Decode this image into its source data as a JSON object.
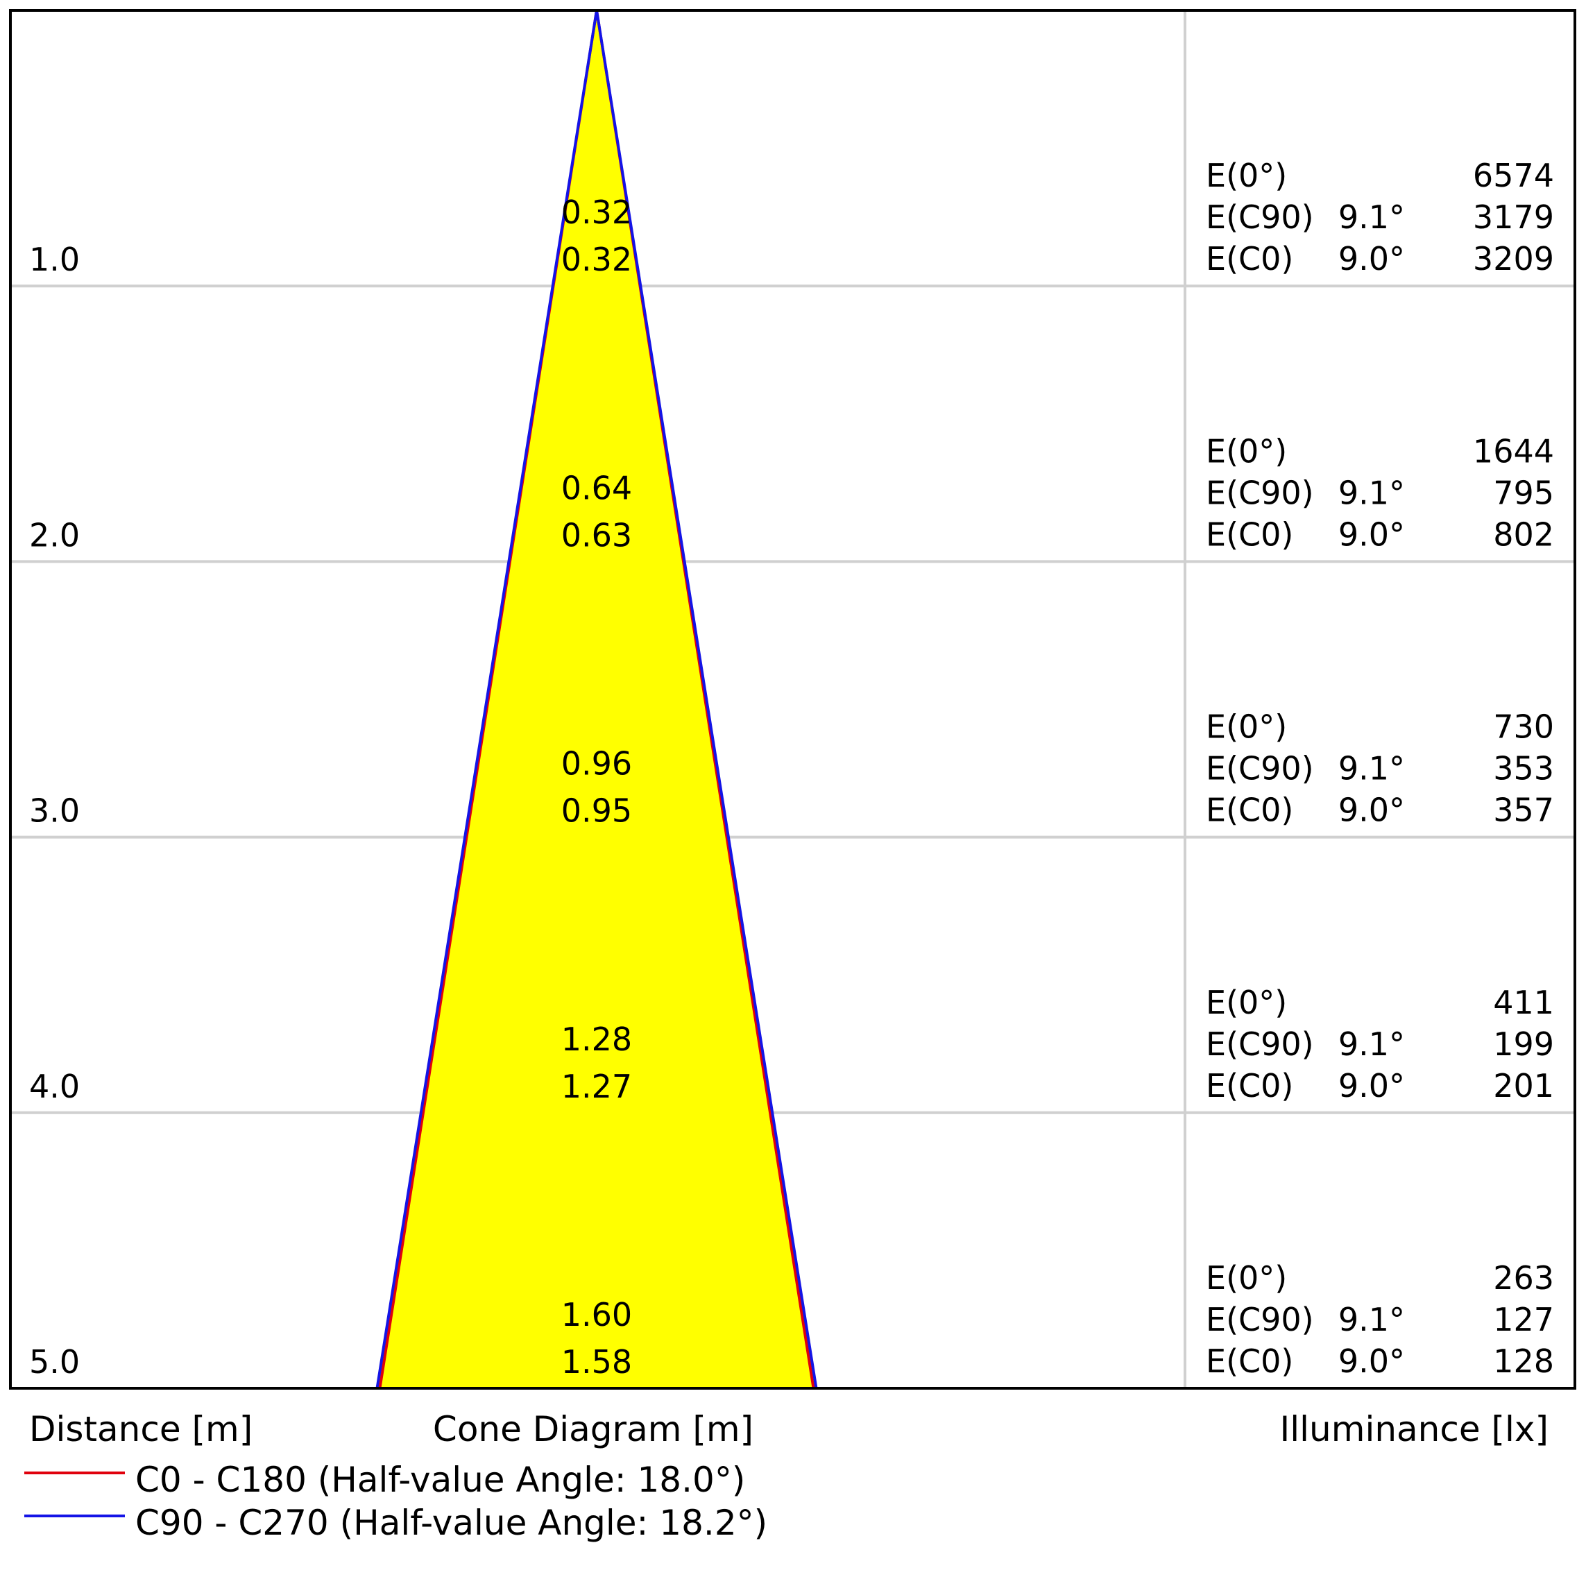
{
  "chart_data": {
    "type": "cone-diagram",
    "xlabel": "Cone Diagram [m]",
    "ylabel": "Distance [m]",
    "right_label": "Illuminance [lx]",
    "distances": [
      "1.0",
      "2.0",
      "3.0",
      "4.0",
      "5.0"
    ],
    "diameters_c90": [
      "0.32",
      "0.64",
      "0.96",
      "1.28",
      "1.60"
    ],
    "diameters_c0": [
      "0.32",
      "0.63",
      "0.95",
      "1.27",
      "1.58"
    ],
    "rows": [
      {
        "e0": {
          "label": "E(0°)",
          "value": "6574"
        },
        "ec90": {
          "label": "E(C90)",
          "angle": "9.1°",
          "value": "3179"
        },
        "ec0": {
          "label": "E(C0)",
          "angle": "9.0°",
          "value": "3209"
        }
      },
      {
        "e0": {
          "label": "E(0°)",
          "value": "1644"
        },
        "ec90": {
          "label": "E(C90)",
          "angle": "9.1°",
          "value": "795"
        },
        "ec0": {
          "label": "E(C0)",
          "angle": "9.0°",
          "value": "802"
        }
      },
      {
        "e0": {
          "label": "E(0°)",
          "value": "730"
        },
        "ec90": {
          "label": "E(C90)",
          "angle": "9.1°",
          "value": "353"
        },
        "ec0": {
          "label": "E(C0)",
          "angle": "9.0°",
          "value": "357"
        }
      },
      {
        "e0": {
          "label": "E(0°)",
          "value": "411"
        },
        "ec90": {
          "label": "E(C90)",
          "angle": "9.1°",
          "value": "199"
        },
        "ec0": {
          "label": "E(C0)",
          "angle": "9.0°",
          "value": "201"
        }
      },
      {
        "e0": {
          "label": "E(0°)",
          "value": "263"
        },
        "ec90": {
          "label": "E(C90)",
          "angle": "9.1°",
          "value": "127"
        },
        "ec0": {
          "label": "E(C0)",
          "angle": "9.0°",
          "value": "128"
        }
      }
    ],
    "legend": [
      {
        "label": "C0 - C180 (Half-value Angle: 18.0°)",
        "color": "#e0000c"
      },
      {
        "label": "C90 - C270 (Half-value Angle: 18.2°)",
        "color": "#1414e6"
      }
    ],
    "colors": {
      "cone_fill": "#ffff00",
      "grid": "#d0d0d0",
      "frame": "#000000"
    }
  }
}
